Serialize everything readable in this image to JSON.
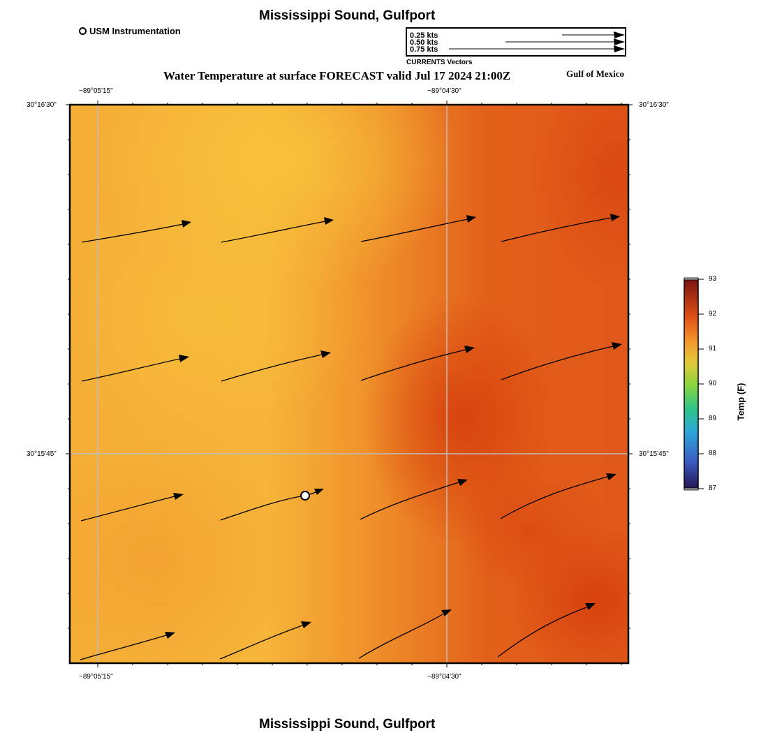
{
  "header": {
    "title": "Mississippi Sound, Gulfport",
    "subtitle": "Water Temperature at surface FORECAST valid Jul 17 2024 21:00Z",
    "region": "Gulf of Mexico",
    "footer_title": "Mississippi Sound, Gulfport"
  },
  "legend": {
    "station_label": "USM Instrumentation"
  },
  "vector_legend": {
    "caption": "CURRENTS Vectors",
    "entries": [
      {
        "label": "0.25 kts",
        "speed_kts": 0.25
      },
      {
        "label": "0.50 kts",
        "speed_kts": 0.5
      },
      {
        "label": "0.75 kts",
        "speed_kts": 0.75
      }
    ]
  },
  "map": {
    "lon_ticks": [
      "−89°05'15\"",
      "−89°04'30\""
    ],
    "lat_ticks": [
      "30°16'30\"",
      "30°15'45\""
    ],
    "station": {
      "name": "USM Instrumentation"
    }
  },
  "colorbar": {
    "title": "Temp (F)",
    "min": 87,
    "max": 93,
    "ticks": [
      "93",
      "92",
      "91",
      "90",
      "89",
      "88",
      "87"
    ]
  },
  "colors": {
    "field_cool": "#f7bc3a",
    "field_mid": "#f3a030",
    "field_warm": "#e05a14",
    "field_hot": "#d8420c",
    "gridline": "#bdbdbd"
  }
}
